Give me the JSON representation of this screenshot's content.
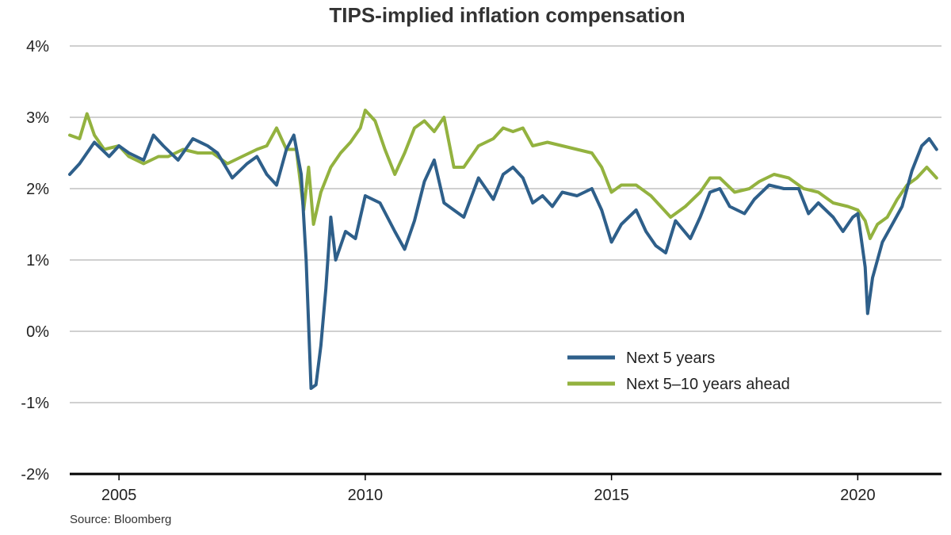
{
  "chart_data": {
    "type": "line",
    "title": "TIPS-implied inflation compensation",
    "source": "Source: Bloomberg",
    "xlabel": "",
    "ylabel": "",
    "xlim": [
      2004.0,
      2021.7
    ],
    "ylim": [
      -2,
      4
    ],
    "x_ticks": [
      2005,
      2010,
      2015,
      2020
    ],
    "x_tick_labels": [
      "2005",
      "2010",
      "2015",
      "2020"
    ],
    "y_ticks": [
      -2,
      -1,
      0,
      1,
      2,
      3,
      4
    ],
    "y_tick_labels": [
      "-2%",
      "-1%",
      "0%",
      "1%",
      "2%",
      "3%",
      "4%"
    ],
    "grid": "horizontal",
    "legend_position": "lower-right",
    "series": [
      {
        "name": "Next 5 years",
        "color": "#2e5f8a",
        "points": [
          [
            2004.0,
            2.2
          ],
          [
            2004.2,
            2.35
          ],
          [
            2004.5,
            2.65
          ],
          [
            2004.8,
            2.45
          ],
          [
            2005.0,
            2.6
          ],
          [
            2005.2,
            2.5
          ],
          [
            2005.5,
            2.4
          ],
          [
            2005.7,
            2.75
          ],
          [
            2005.9,
            2.6
          ],
          [
            2006.2,
            2.4
          ],
          [
            2006.5,
            2.7
          ],
          [
            2006.8,
            2.6
          ],
          [
            2007.0,
            2.5
          ],
          [
            2007.3,
            2.15
          ],
          [
            2007.6,
            2.35
          ],
          [
            2007.8,
            2.45
          ],
          [
            2008.0,
            2.2
          ],
          [
            2008.2,
            2.05
          ],
          [
            2008.4,
            2.55
          ],
          [
            2008.55,
            2.75
          ],
          [
            2008.7,
            2.2
          ],
          [
            2008.8,
            1.0
          ],
          [
            2008.9,
            -0.8
          ],
          [
            2009.0,
            -0.75
          ],
          [
            2009.1,
            -0.2
          ],
          [
            2009.2,
            0.6
          ],
          [
            2009.3,
            1.6
          ],
          [
            2009.4,
            1.0
          ],
          [
            2009.6,
            1.4
          ],
          [
            2009.8,
            1.3
          ],
          [
            2010.0,
            1.9
          ],
          [
            2010.3,
            1.8
          ],
          [
            2010.6,
            1.4
          ],
          [
            2010.8,
            1.15
          ],
          [
            2011.0,
            1.55
          ],
          [
            2011.2,
            2.1
          ],
          [
            2011.4,
            2.4
          ],
          [
            2011.6,
            1.8
          ],
          [
            2011.8,
            1.7
          ],
          [
            2012.0,
            1.6
          ],
          [
            2012.3,
            2.15
          ],
          [
            2012.6,
            1.85
          ],
          [
            2012.8,
            2.2
          ],
          [
            2013.0,
            2.3
          ],
          [
            2013.2,
            2.15
          ],
          [
            2013.4,
            1.8
          ],
          [
            2013.6,
            1.9
          ],
          [
            2013.8,
            1.75
          ],
          [
            2014.0,
            1.95
          ],
          [
            2014.3,
            1.9
          ],
          [
            2014.6,
            2.0
          ],
          [
            2014.8,
            1.7
          ],
          [
            2015.0,
            1.25
          ],
          [
            2015.2,
            1.5
          ],
          [
            2015.5,
            1.7
          ],
          [
            2015.7,
            1.4
          ],
          [
            2015.9,
            1.2
          ],
          [
            2016.1,
            1.1
          ],
          [
            2016.3,
            1.55
          ],
          [
            2016.6,
            1.3
          ],
          [
            2016.8,
            1.6
          ],
          [
            2017.0,
            1.95
          ],
          [
            2017.2,
            2.0
          ],
          [
            2017.4,
            1.75
          ],
          [
            2017.7,
            1.65
          ],
          [
            2017.9,
            1.85
          ],
          [
            2018.2,
            2.05
          ],
          [
            2018.5,
            2.0
          ],
          [
            2018.8,
            2.0
          ],
          [
            2019.0,
            1.65
          ],
          [
            2019.2,
            1.8
          ],
          [
            2019.5,
            1.6
          ],
          [
            2019.7,
            1.4
          ],
          [
            2019.9,
            1.6
          ],
          [
            2020.0,
            1.65
          ],
          [
            2020.15,
            0.9
          ],
          [
            2020.2,
            0.25
          ],
          [
            2020.3,
            0.75
          ],
          [
            2020.5,
            1.25
          ],
          [
            2020.7,
            1.5
          ],
          [
            2020.9,
            1.75
          ],
          [
            2021.1,
            2.25
          ],
          [
            2021.3,
            2.6
          ],
          [
            2021.45,
            2.7
          ],
          [
            2021.6,
            2.55
          ]
        ]
      },
      {
        "name": "Next 5–10 years ahead",
        "color": "#93b23f",
        "points": [
          [
            2004.0,
            2.75
          ],
          [
            2004.2,
            2.7
          ],
          [
            2004.35,
            3.05
          ],
          [
            2004.5,
            2.75
          ],
          [
            2004.7,
            2.55
          ],
          [
            2005.0,
            2.6
          ],
          [
            2005.2,
            2.45
          ],
          [
            2005.5,
            2.35
          ],
          [
            2005.8,
            2.45
          ],
          [
            2006.0,
            2.45
          ],
          [
            2006.3,
            2.55
          ],
          [
            2006.6,
            2.5
          ],
          [
            2006.9,
            2.5
          ],
          [
            2007.2,
            2.35
          ],
          [
            2007.5,
            2.45
          ],
          [
            2007.8,
            2.55
          ],
          [
            2008.0,
            2.6
          ],
          [
            2008.2,
            2.85
          ],
          [
            2008.4,
            2.55
          ],
          [
            2008.6,
            2.55
          ],
          [
            2008.75,
            1.7
          ],
          [
            2008.85,
            2.3
          ],
          [
            2008.95,
            1.5
          ],
          [
            2009.1,
            1.95
          ],
          [
            2009.3,
            2.3
          ],
          [
            2009.5,
            2.5
          ],
          [
            2009.7,
            2.65
          ],
          [
            2009.9,
            2.85
          ],
          [
            2010.0,
            3.1
          ],
          [
            2010.2,
            2.95
          ],
          [
            2010.4,
            2.55
          ],
          [
            2010.6,
            2.2
          ],
          [
            2010.8,
            2.5
          ],
          [
            2011.0,
            2.85
          ],
          [
            2011.2,
            2.95
          ],
          [
            2011.4,
            2.8
          ],
          [
            2011.6,
            3.0
          ],
          [
            2011.8,
            2.3
          ],
          [
            2012.0,
            2.3
          ],
          [
            2012.3,
            2.6
          ],
          [
            2012.6,
            2.7
          ],
          [
            2012.8,
            2.85
          ],
          [
            2013.0,
            2.8
          ],
          [
            2013.2,
            2.85
          ],
          [
            2013.4,
            2.6
          ],
          [
            2013.7,
            2.65
          ],
          [
            2014.0,
            2.6
          ],
          [
            2014.3,
            2.55
          ],
          [
            2014.6,
            2.5
          ],
          [
            2014.8,
            2.3
          ],
          [
            2015.0,
            1.95
          ],
          [
            2015.2,
            2.05
          ],
          [
            2015.5,
            2.05
          ],
          [
            2015.8,
            1.9
          ],
          [
            2016.0,
            1.75
          ],
          [
            2016.2,
            1.6
          ],
          [
            2016.5,
            1.75
          ],
          [
            2016.8,
            1.95
          ],
          [
            2017.0,
            2.15
          ],
          [
            2017.2,
            2.15
          ],
          [
            2017.5,
            1.95
          ],
          [
            2017.8,
            2.0
          ],
          [
            2018.0,
            2.1
          ],
          [
            2018.3,
            2.2
          ],
          [
            2018.6,
            2.15
          ],
          [
            2018.9,
            2.0
          ],
          [
            2019.2,
            1.95
          ],
          [
            2019.5,
            1.8
          ],
          [
            2019.8,
            1.75
          ],
          [
            2020.0,
            1.7
          ],
          [
            2020.15,
            1.55
          ],
          [
            2020.25,
            1.3
          ],
          [
            2020.4,
            1.5
          ],
          [
            2020.6,
            1.6
          ],
          [
            2020.8,
            1.85
          ],
          [
            2021.0,
            2.05
          ],
          [
            2021.2,
            2.15
          ],
          [
            2021.4,
            2.3
          ],
          [
            2021.6,
            2.15
          ]
        ]
      }
    ]
  }
}
